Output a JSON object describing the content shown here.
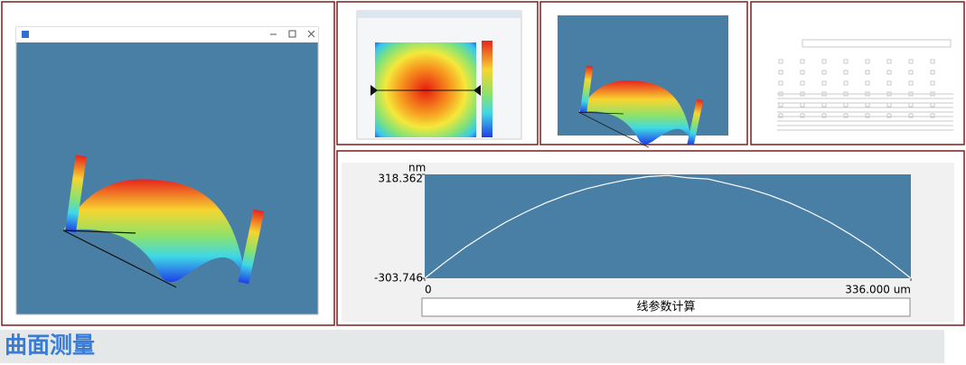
{
  "profile": {
    "type": "line",
    "y_label": "nm",
    "ylim": [
      -303.746,
      318.362
    ],
    "yticks": [
      318.362,
      -303.746
    ],
    "xlim": [
      0,
      336
    ],
    "xticks": [
      0,
      {
        "value": 336,
        "label": "336.000 um"
      }
    ],
    "x": [
      0,
      14,
      28,
      42,
      56,
      70,
      84,
      98,
      112,
      126,
      140,
      154,
      168,
      182,
      196,
      210,
      224,
      238,
      252,
      266,
      280,
      294,
      308,
      322,
      336
    ],
    "y": [
      -303.746,
      -208,
      -119,
      -40,
      32,
      94,
      149,
      195,
      233,
      262,
      287,
      305,
      312,
      298,
      290,
      262,
      233,
      195,
      149,
      94,
      32,
      -40,
      -119,
      -208,
      -303.746
    ],
    "color": "#ffffff"
  },
  "button": "线参数计算",
  "heading": "曲面测量"
}
